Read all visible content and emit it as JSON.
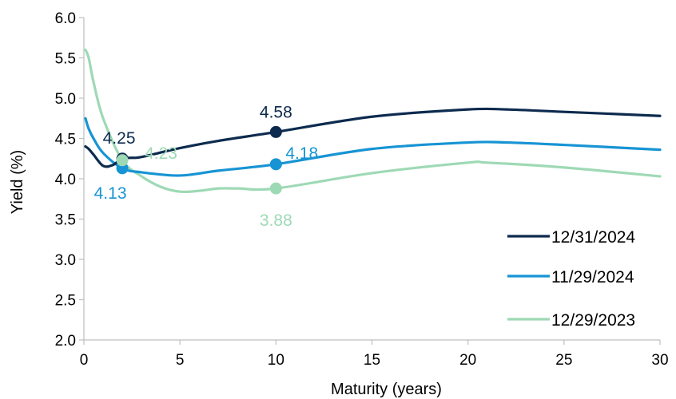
{
  "chart_data": {
    "type": "line",
    "title": "",
    "xlabel": "Maturity (years)",
    "ylabel": "Yield (%)",
    "xlim": [
      0,
      30
    ],
    "ylim": [
      2.0,
      6.0
    ],
    "xticks": [
      0,
      5,
      10,
      15,
      20,
      25,
      30
    ],
    "yticks": [
      2.0,
      2.5,
      3.0,
      3.5,
      4.0,
      4.5,
      5.0,
      5.5,
      6.0
    ],
    "grid": false,
    "legend_position": "bottom-right",
    "series": [
      {
        "name": "12/31/2024",
        "color": "#0d2b4e",
        "x": [
          0.08,
          0.25,
          0.5,
          1,
          1.5,
          2,
          2.5,
          3,
          5,
          7,
          10,
          15,
          20,
          22,
          25,
          30
        ],
        "y": [
          4.4,
          4.37,
          4.3,
          4.16,
          4.17,
          4.25,
          4.26,
          4.27,
          4.38,
          4.47,
          4.58,
          4.77,
          4.86,
          4.86,
          4.83,
          4.78
        ]
      },
      {
        "name": "11/29/2024",
        "color": "#1794d4",
        "x": [
          0.08,
          0.25,
          0.5,
          1,
          2,
          3,
          5,
          7,
          10,
          15,
          20,
          22,
          25,
          30
        ],
        "y": [
          4.75,
          4.62,
          4.5,
          4.32,
          4.13,
          4.08,
          4.04,
          4.1,
          4.18,
          4.37,
          4.45,
          4.45,
          4.42,
          4.36
        ]
      },
      {
        "name": "12/29/2023",
        "color": "#9ed9b5",
        "x": [
          0.08,
          0.25,
          0.5,
          1,
          2,
          3,
          4,
          5,
          6,
          7,
          8,
          10,
          15,
          20,
          21,
          25,
          30
        ],
        "y": [
          5.6,
          5.5,
          5.2,
          4.75,
          4.23,
          4.03,
          3.9,
          3.84,
          3.85,
          3.88,
          3.88,
          3.88,
          4.07,
          4.2,
          4.2,
          4.14,
          4.03
        ]
      }
    ],
    "data_labels": [
      {
        "series": 0,
        "x": 2,
        "y": 4.25,
        "text": "4.25",
        "pos": "above-left"
      },
      {
        "series": 0,
        "x": 10,
        "y": 4.58,
        "text": "4.58",
        "pos": "above"
      },
      {
        "series": 1,
        "x": 2,
        "y": 4.13,
        "text": "4.13",
        "pos": "below-left"
      },
      {
        "series": 1,
        "x": 10,
        "y": 4.18,
        "text": "4.18",
        "pos": "right"
      },
      {
        "series": 2,
        "x": 2,
        "y": 4.23,
        "text": "4.23",
        "pos": "right"
      },
      {
        "series": 2,
        "x": 10,
        "y": 3.88,
        "text": "3.88",
        "pos": "below"
      }
    ]
  }
}
